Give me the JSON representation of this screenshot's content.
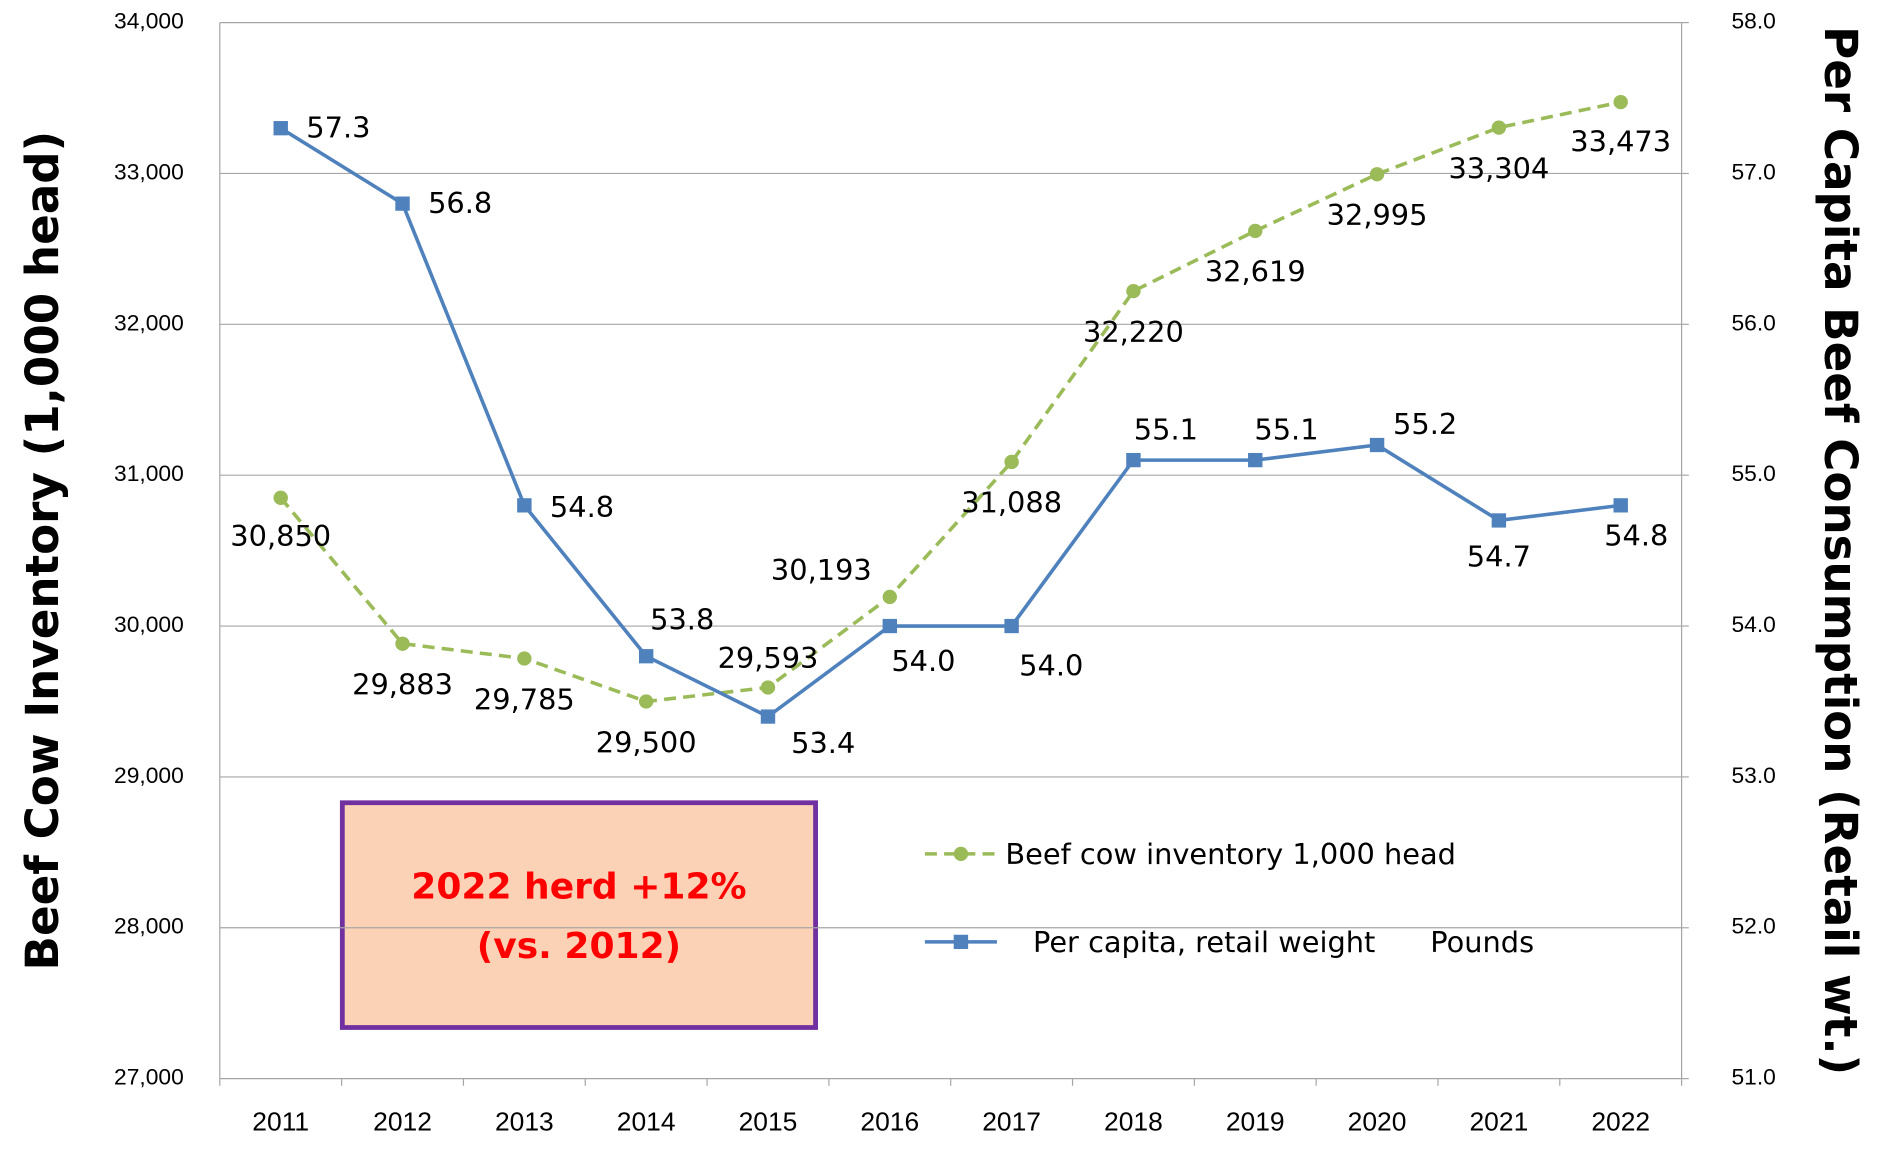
{
  "chart_data": {
    "type": "line",
    "ylabel": "Beef Cow Inventory (1,000 head)",
    "y2label": "Per Capita Beef Consumption (Retail wt.)",
    "annotations": [
      "2022 herd +12%",
      "(vs. 2012)"
    ],
    "categories": [
      "2011",
      "2012",
      "2013",
      "2014",
      "2015",
      "2016",
      "2017",
      "2018",
      "2019",
      "2020",
      "2021",
      "2022"
    ],
    "series": [
      {
        "name": "Beef cow inventory 1,000 head",
        "color": "#9bbb59",
        "dashed": true,
        "marker": "circle",
        "values": [
          30850,
          29883,
          29785,
          29500,
          29593,
          30193,
          31088,
          32220,
          32619,
          32995,
          33304,
          33473
        ],
        "value_labels": [
          "30,850",
          "29,883",
          "29,785",
          "29,500",
          "29,593",
          "30,193",
          "31,088",
          "32,220",
          "32,619",
          "32,995",
          "33,304",
          "33,473"
        ]
      },
      {
        "name": "Per capita, retail weight      Pounds",
        "color": "#4f81bd",
        "dashed": false,
        "marker": "square",
        "axis": "y2",
        "values": [
          57.3,
          56.8,
          54.8,
          53.8,
          53.4,
          54.0,
          54.0,
          55.1,
          55.1,
          55.2,
          54.7,
          54.8
        ],
        "value_labels": [
          "57.3",
          "56.8",
          "54.8",
          "53.8",
          "53.4",
          "54.0",
          "54.0",
          "55.1",
          "55.1",
          "55.2",
          "54.7",
          "54.8"
        ]
      }
    ],
    "ylim": [
      27000,
      34000
    ],
    "yticks": [
      {
        "value": 27000,
        "label": "27,000"
      },
      {
        "value": 28000,
        "label": "28,000"
      },
      {
        "value": 29000,
        "label": "29,000"
      },
      {
        "value": 30000,
        "label": "30,000"
      },
      {
        "value": 31000,
        "label": "31,000"
      },
      {
        "value": 32000,
        "label": "32,000"
      },
      {
        "value": 33000,
        "label": "33,000"
      },
      {
        "value": 34000,
        "label": "34,000"
      }
    ],
    "y2lim": [
      51,
      58
    ],
    "y2ticks": [
      {
        "value": 51,
        "label": "51.0"
      },
      {
        "value": 52,
        "label": "52.0"
      },
      {
        "value": 53,
        "label": "53.0"
      },
      {
        "value": 54,
        "label": "54.0"
      },
      {
        "value": 55,
        "label": "55.0"
      },
      {
        "value": 56,
        "label": "56.0"
      },
      {
        "value": 57,
        "label": "57.0"
      },
      {
        "value": 58,
        "label": "58.0"
      }
    ],
    "grid": true
  }
}
